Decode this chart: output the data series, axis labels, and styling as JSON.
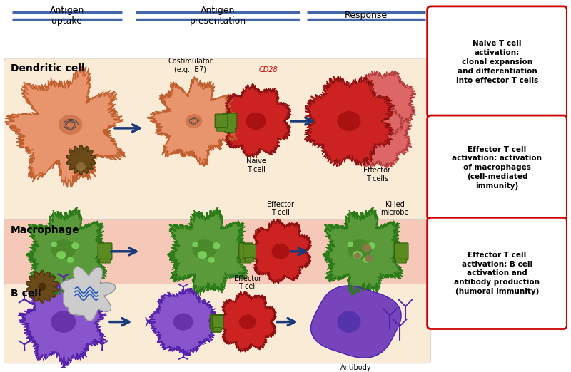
{
  "fig_w": 8.0,
  "fig_h": 5.22,
  "dpi": 100,
  "bg_color": "#ffffff",
  "row1_bg": "#faebd7",
  "row2_bg": "#f5c8b8",
  "row3_bg": "#faebd7",
  "header_line_color": "#4466aa",
  "arrow_color": "#1a3a7a",
  "box_texts": [
    "Naive T cell\nactivation:\nclonal expansion\nand differentiation\ninto effector T cells",
    "Effector T cell\nactivation: activation\nof macrophages\n(cell-mediated\nimmunity)",
    "Effector T cell\nactivation: B cell\nactivation and\nantibody production\n(humoral immunity)"
  ],
  "red_border": "#cc0000",
  "row_labels": [
    "Dendritic cell",
    "Macrophage",
    "B cell"
  ],
  "header_labels": [
    "Antigen\nuptake",
    "Antigen\npresentation",
    "Response"
  ]
}
